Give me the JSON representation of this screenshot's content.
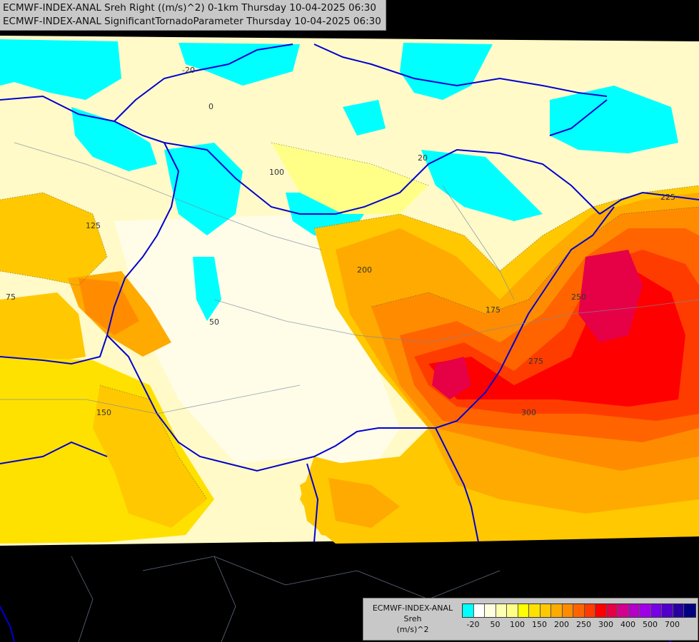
{
  "title": {
    "line1": "ECMWF-INDEX-ANAL Sreh Right ((m/s)^2) 0-1km Thursday 10-04-2025 06:30",
    "line2": "ECMWF-INDEX-ANAL SignificantTornadoParameter Thursday 10-04-2025 06:30"
  },
  "legend": {
    "line1": "ECMWF-INDEX-ANAL",
    "line2": "Sreh",
    "line3": "(m/s)^2",
    "colors": [
      "#00ffff",
      "#ffffff",
      "#ffffe0",
      "#ffffb4",
      "#ffff88",
      "#ffff00",
      "#ffe100",
      "#ffc800",
      "#ffaa00",
      "#ff8c00",
      "#ff6400",
      "#ff3c00",
      "#ff0000",
      "#e60046",
      "#d2008c",
      "#b400c8",
      "#a000e6",
      "#7800e6",
      "#5000c8",
      "#2800a0",
      "#000080"
    ],
    "ticks": [
      "-20",
      "50",
      "100",
      "150",
      "200",
      "250",
      "300",
      "400",
      "500",
      "700"
    ]
  },
  "contour_labels": [
    "-20",
    "0",
    "20",
    "50",
    "75",
    "100",
    "125",
    "150",
    "175",
    "200",
    "225",
    "250",
    "275",
    "300"
  ]
}
